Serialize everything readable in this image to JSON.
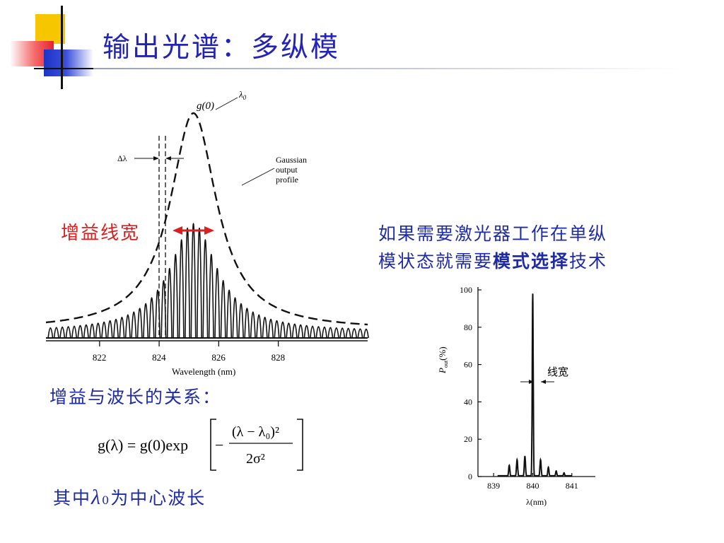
{
  "slide": {
    "title": "输出光谱：多纵模",
    "gain_width_label": "增益线宽",
    "single_mode_text": {
      "line1": "如果需要激光器工作在单纵",
      "line2_prefix": "模状态就需要",
      "line2_emph": "模式选择",
      "line2_suffix": "技术"
    },
    "relation_heading": "增益与波长的关系：",
    "formula": {
      "lhs": "g(λ) = g(0)exp",
      "numerator": "(λ − λ₀)²",
      "denominator": "2σ²"
    },
    "center_note": {
      "prefix": "其中",
      "symbol": "λ",
      "subscript": "0",
      "suffix": "为中心波长"
    }
  },
  "colors": {
    "title": "#2323b8",
    "text_blue": "#1f2ba6",
    "red": "#d82020",
    "ink": "#111111"
  },
  "chart_data": [
    {
      "type": "line",
      "description_role": "longitudinal-mode spectrum under Gaussian gain envelope",
      "xlabel": "Wavelength (nm)",
      "x_ticks": [
        822,
        824,
        826,
        828
      ],
      "xlim": [
        820.2,
        831.0
      ],
      "center_wavelength": 825.15,
      "peak_relative": 1.0,
      "mode_spacing_nm": 0.2,
      "envelope": "lorentzian-like, HWHM ≈ 0.95 nm",
      "annotations": {
        "peak_label": "g(0)",
        "lambda0_label": "λ",
        "lambda0_sub": "0",
        "delta_label": "Δλ",
        "profile_label": [
          "Gaussian",
          "output",
          "profile"
        ]
      },
      "gain_width_arrow_nm": [
        824.45,
        825.85
      ]
    },
    {
      "type": "line",
      "description_role": "single longitudinal mode output",
      "xlabel": "λ(nm)",
      "ylabel_main": "P",
      "ylabel_sub": "out",
      "ylabel_unit": "(%)",
      "x_ticks": [
        839,
        840,
        841
      ],
      "y_ticks": [
        0,
        20,
        40,
        60,
        80,
        100
      ],
      "xlim": [
        838.6,
        841.6
      ],
      "ylim": [
        0,
        100
      ],
      "main_peak": {
        "x": 840.0,
        "y": 98
      },
      "side_peaks": [
        {
          "x": 839.4,
          "y": 6
        },
        {
          "x": 839.6,
          "y": 9
        },
        {
          "x": 839.8,
          "y": 11
        },
        {
          "x": 840.2,
          "y": 9
        },
        {
          "x": 840.4,
          "y": 5
        },
        {
          "x": 840.6,
          "y": 3
        },
        {
          "x": 840.8,
          "y": 2
        }
      ],
      "linewidth_label": "线宽"
    }
  ]
}
